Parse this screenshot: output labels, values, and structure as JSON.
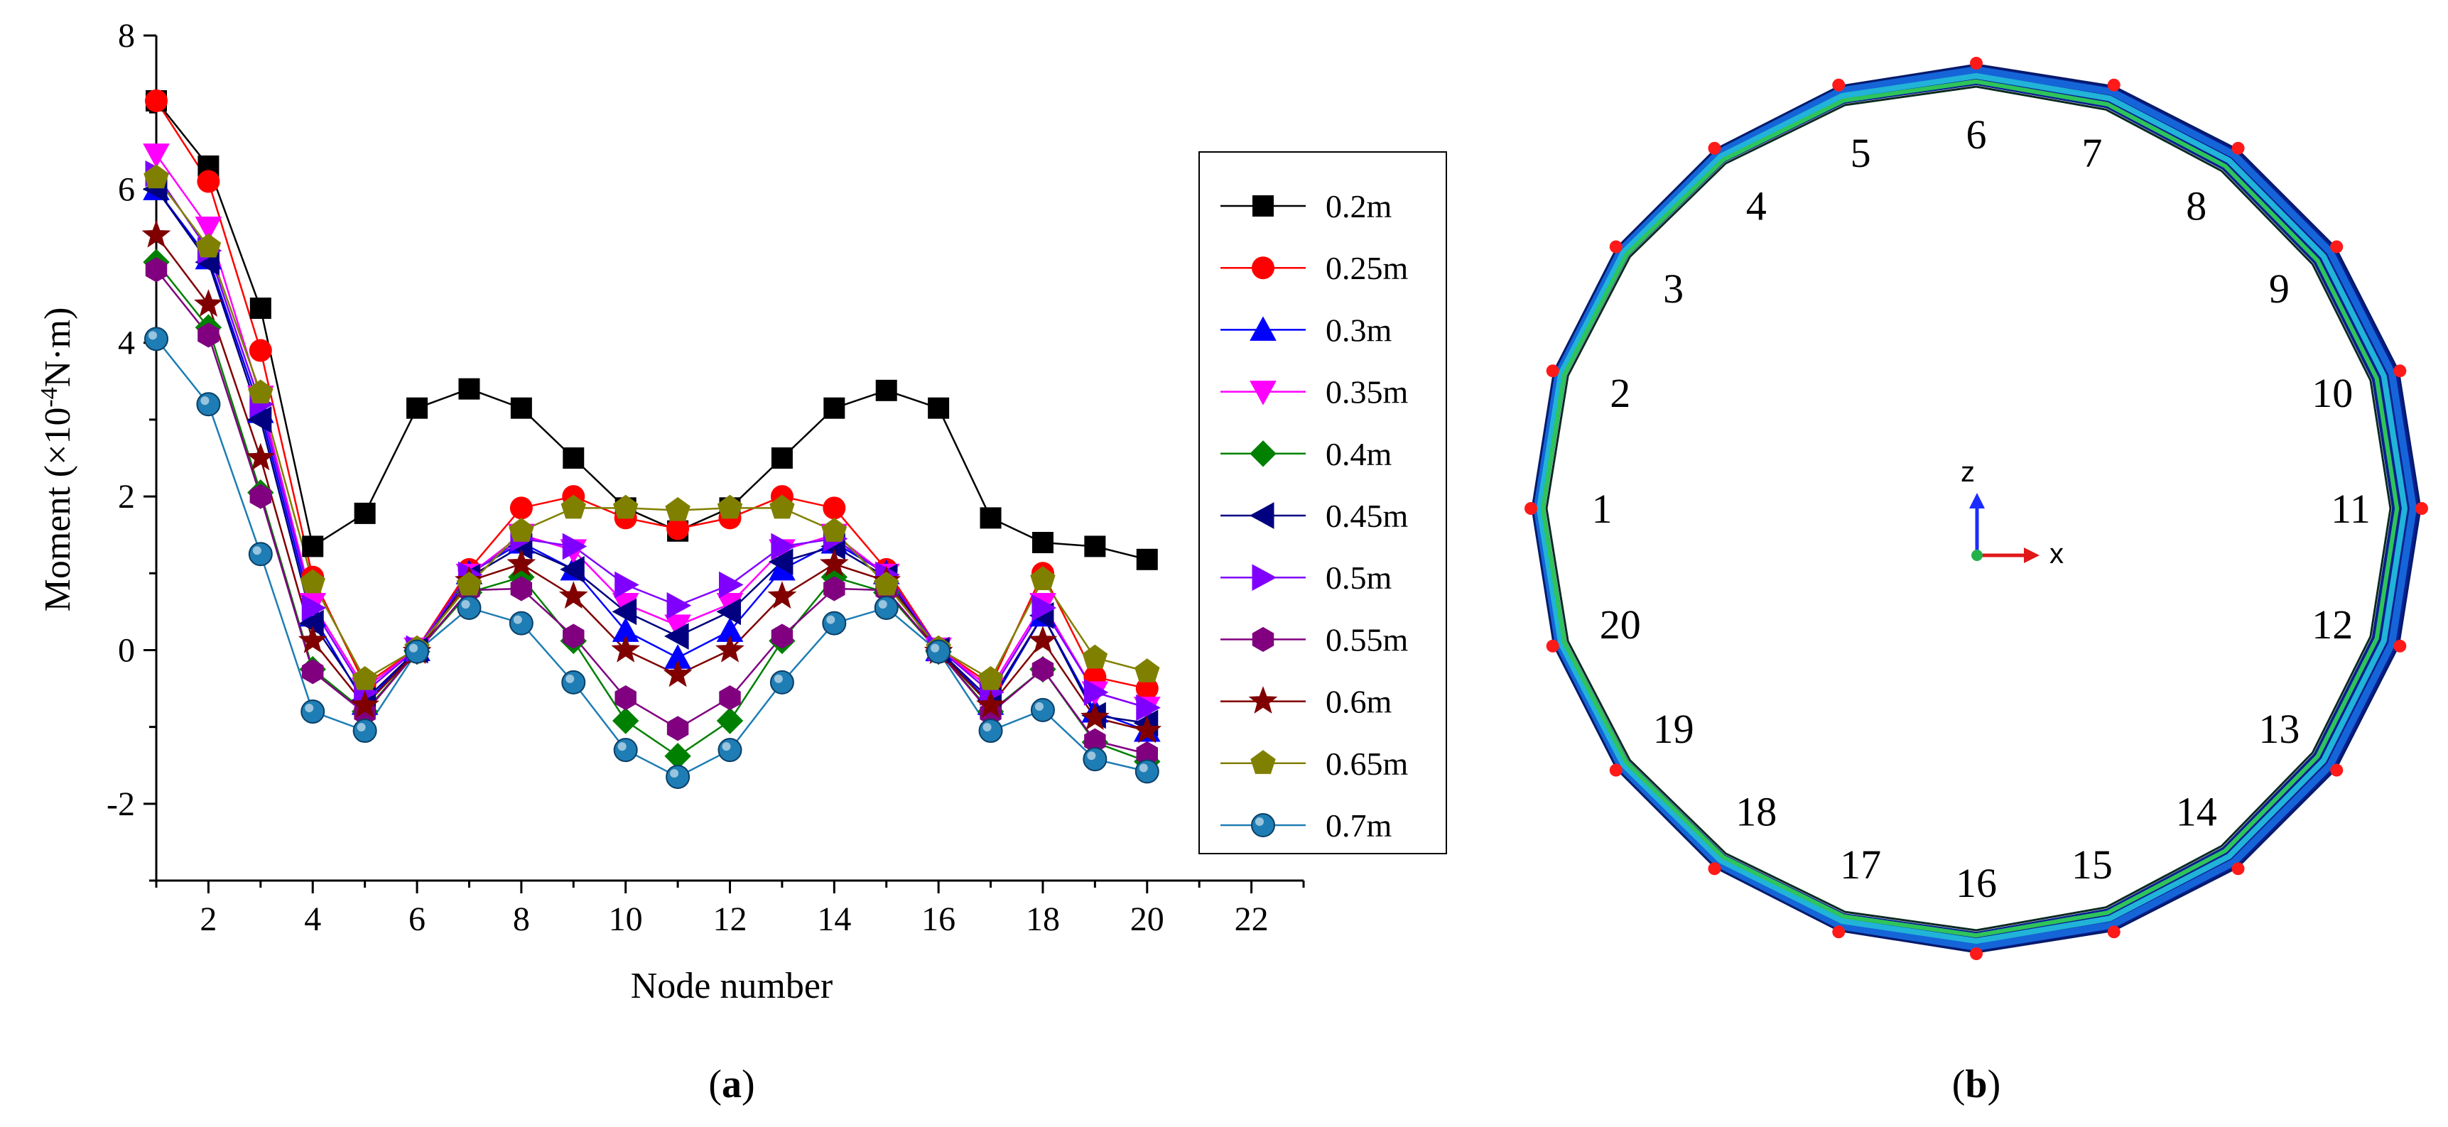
{
  "chart_data": [
    {
      "type": "line",
      "xlabel": "Node number",
      "ylabel_parts": [
        "Moment (×10",
        "-4",
        "N·m)"
      ],
      "xlim": [
        1,
        23
      ],
      "ylim": [
        -3,
        8
      ],
      "xticks": [
        "2",
        "4",
        "6",
        "8",
        "10",
        "12",
        "14",
        "16",
        "18",
        "20",
        "22"
      ],
      "yticks": [
        "-2",
        "0",
        "2",
        "4",
        "6",
        "8"
      ],
      "x": [
        1,
        2,
        3,
        4,
        5,
        6,
        7,
        8,
        9,
        10,
        11,
        12,
        13,
        14,
        15,
        16,
        17,
        18,
        19,
        20
      ],
      "legend_position": "right",
      "panel_label": [
        "(",
        "a",
        ")"
      ],
      "series": [
        {
          "name": "0.2m",
          "color": "#000000",
          "marker": "square",
          "values": [
            7.15,
            6.3,
            4.45,
            1.35,
            1.78,
            3.15,
            3.4,
            3.15,
            2.5,
            1.85,
            1.55,
            1.85,
            2.5,
            3.15,
            3.38,
            3.15,
            1.72,
            1.4,
            1.35,
            1.18
          ]
        },
        {
          "name": "0.25m",
          "color": "#ff0000",
          "marker": "circle",
          "values": [
            7.15,
            6.1,
            3.9,
            0.95,
            -0.45,
            0.02,
            1.05,
            1.85,
            2.0,
            1.72,
            1.58,
            1.72,
            2.0,
            1.85,
            1.05,
            0.02,
            -0.45,
            1.0,
            -0.35,
            -0.5
          ]
        },
        {
          "name": "0.3m",
          "color": "#0000ff",
          "marker": "triangle-up",
          "values": [
            6.0,
            5.1,
            3.1,
            0.45,
            -0.7,
            0.0,
            1.0,
            1.4,
            1.05,
            0.25,
            -0.1,
            0.25,
            1.05,
            1.4,
            1.0,
            0.0,
            -0.7,
            0.45,
            -0.8,
            -1.05
          ]
        },
        {
          "name": "0.35m",
          "color": "#ff00ff",
          "marker": "triangle-down",
          "values": [
            6.45,
            5.5,
            3.3,
            0.6,
            -0.5,
            0.02,
            0.98,
            1.5,
            1.3,
            0.6,
            0.32,
            0.6,
            1.3,
            1.5,
            0.98,
            0.02,
            -0.5,
            0.6,
            -0.55,
            -0.75
          ]
        },
        {
          "name": "0.4m",
          "color": "#008000",
          "marker": "diamond",
          "values": [
            5.05,
            4.2,
            2.05,
            -0.25,
            -0.8,
            -0.02,
            0.75,
            0.95,
            0.12,
            -0.92,
            -1.38,
            -0.92,
            0.12,
            0.95,
            0.75,
            -0.02,
            -0.8,
            -0.25,
            -1.2,
            -1.45
          ]
        },
        {
          "name": "0.45m",
          "color": "#000080",
          "marker": "triangle-left",
          "values": [
            6.0,
            5.05,
            3.0,
            0.35,
            -0.65,
            0.0,
            0.95,
            1.35,
            1.05,
            0.5,
            0.18,
            0.5,
            1.15,
            1.35,
            0.95,
            0.0,
            -0.65,
            0.45,
            -0.85,
            -0.95
          ]
        },
        {
          "name": "0.5m",
          "color": "#8000ff",
          "marker": "triangle-right",
          "values": [
            6.2,
            5.2,
            3.2,
            0.55,
            -0.55,
            0.02,
            0.98,
            1.45,
            1.35,
            0.85,
            0.58,
            0.85,
            1.35,
            1.45,
            0.98,
            0.02,
            -0.55,
            0.55,
            -0.55,
            -0.75
          ]
        },
        {
          "name": "0.55m",
          "color": "#800080",
          "marker": "hexagon",
          "values": [
            4.95,
            4.1,
            2.0,
            -0.28,
            -0.82,
            -0.02,
            0.78,
            0.8,
            0.18,
            -0.62,
            -1.02,
            -0.62,
            0.18,
            0.8,
            0.78,
            -0.02,
            -0.82,
            -0.25,
            -1.18,
            -1.35
          ]
        },
        {
          "name": "0.6m",
          "color": "#800000",
          "marker": "star",
          "values": [
            5.4,
            4.5,
            2.5,
            0.12,
            -0.72,
            -0.02,
            0.9,
            1.12,
            0.7,
            0.0,
            -0.32,
            0.0,
            0.7,
            1.12,
            0.9,
            -0.02,
            -0.72,
            0.12,
            -0.88,
            -1.05
          ]
        },
        {
          "name": "0.65m",
          "color": "#808000",
          "marker": "pentagon",
          "values": [
            6.15,
            5.25,
            3.35,
            0.88,
            -0.38,
            0.02,
            0.85,
            1.55,
            1.85,
            1.85,
            1.82,
            1.85,
            1.85,
            1.55,
            0.85,
            0.02,
            -0.38,
            0.92,
            -0.1,
            -0.28
          ]
        },
        {
          "name": "0.7m",
          "color": "#1e7db4",
          "marker": "ball",
          "values": [
            4.05,
            3.2,
            1.25,
            -0.8,
            -1.05,
            -0.02,
            0.55,
            0.35,
            -0.42,
            -1.3,
            -1.65,
            -1.3,
            -0.42,
            0.35,
            0.55,
            -0.02,
            -1.05,
            -0.78,
            -1.42,
            -1.58
          ]
        }
      ]
    },
    {
      "type": "diagram",
      "nodes": [
        "1",
        "2",
        "3",
        "4",
        "5",
        "6",
        "7",
        "8",
        "9",
        "10",
        "11",
        "12",
        "13",
        "14",
        "15",
        "16",
        "17",
        "18",
        "19",
        "20"
      ],
      "axis_labels": {
        "vertical": "z",
        "horizontal": "x"
      },
      "panel_label": [
        "(",
        "b",
        ")"
      ]
    }
  ],
  "colors": {
    "marker_red": "#ff1a1a",
    "ring_dark": "#0a1f8f",
    "ring_mid": "#1565d8",
    "ring_light": "#21b3d8",
    "ring_green": "#2ec45a"
  }
}
